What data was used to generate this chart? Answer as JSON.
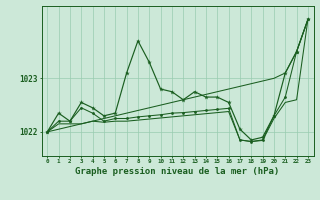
{
  "background_color": "#cce8d8",
  "plot_bg_color": "#cce8d8",
  "grid_color": "#99ccb0",
  "line_color": "#1a5e20",
  "xlabel": "Graphe pression niveau de la mer (hPa)",
  "xlabel_fontsize": 6.5,
  "ylabel_ticks": [
    1022,
    1023
  ],
  "xlim": [
    -0.5,
    23.5
  ],
  "ylim": [
    1021.55,
    1024.35
  ],
  "x_ticks": [
    0,
    1,
    2,
    3,
    4,
    5,
    6,
    7,
    8,
    9,
    10,
    11,
    12,
    13,
    14,
    15,
    16,
    17,
    18,
    19,
    20,
    21,
    22,
    23
  ],
  "series1": [
    1022.0,
    1022.35,
    1022.2,
    1022.55,
    1022.45,
    1022.3,
    1022.35,
    1023.1,
    1023.7,
    1023.3,
    1022.8,
    1022.75,
    1022.6,
    1022.75,
    1022.65,
    1022.65,
    1022.55,
    1022.05,
    1021.85,
    1021.9,
    1022.3,
    1023.1,
    1023.5,
    1024.1
  ],
  "series2": [
    1022.0,
    1022.05,
    1022.1,
    1022.15,
    1022.2,
    1022.25,
    1022.3,
    1022.35,
    1022.4,
    1022.45,
    1022.5,
    1022.55,
    1022.6,
    1022.65,
    1022.7,
    1022.75,
    1022.8,
    1022.85,
    1022.9,
    1022.95,
    1023.0,
    1023.1,
    1023.5,
    1024.1
  ],
  "series3": [
    1022.0,
    1022.2,
    1022.2,
    1022.45,
    1022.35,
    1022.2,
    1022.25,
    1022.25,
    1022.28,
    1022.3,
    1022.32,
    1022.35,
    1022.36,
    1022.38,
    1022.4,
    1022.42,
    1022.44,
    1021.85,
    1021.82,
    1021.85,
    1022.3,
    1022.65,
    1023.5,
    1024.1
  ],
  "series4": [
    1022.0,
    1022.15,
    1022.15,
    1022.15,
    1022.2,
    1022.18,
    1022.2,
    1022.2,
    1022.22,
    1022.24,
    1022.26,
    1022.28,
    1022.3,
    1022.32,
    1022.34,
    1022.36,
    1022.38,
    1021.85,
    1021.82,
    1021.84,
    1022.25,
    1022.55,
    1022.6,
    1024.1
  ]
}
